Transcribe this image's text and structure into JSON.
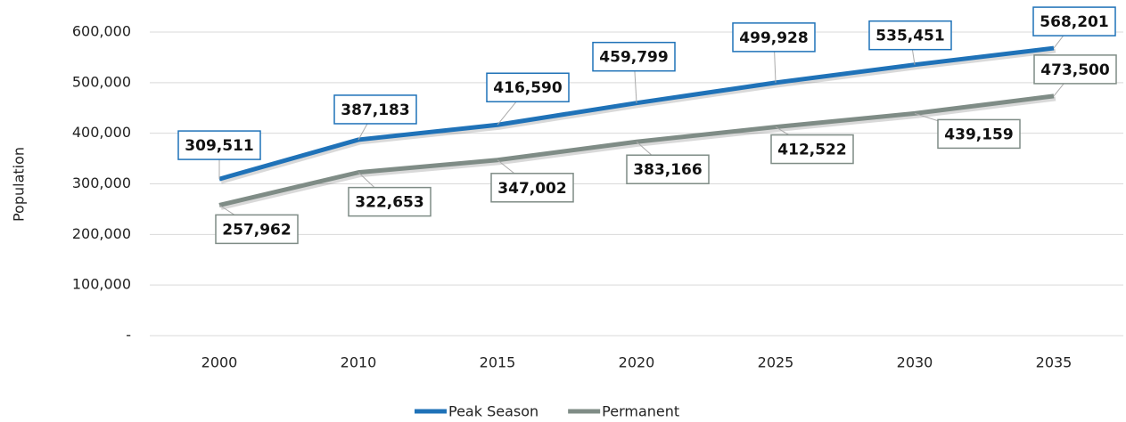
{
  "chart_data": {
    "type": "line",
    "categories": [
      "2000",
      "2010",
      "2015",
      "2020",
      "2025",
      "2030",
      "2035"
    ],
    "series": [
      {
        "name": "Peak Season",
        "color": "#1f72b8",
        "values": [
          309511,
          387183,
          416590,
          459799,
          499928,
          535451,
          568201
        ],
        "value_labels": [
          "309,511",
          "387,183",
          "416,590",
          "459,799",
          "499,928",
          "535,451",
          "568,201"
        ]
      },
      {
        "name": "Permanent",
        "color": "#7f8c86",
        "values": [
          257962,
          322653,
          347002,
          383166,
          412522,
          439159,
          473500
        ],
        "value_labels": [
          "257,962",
          "322,653",
          "347,002",
          "383,166",
          "412,522",
          "439,159",
          "473,500"
        ]
      }
    ],
    "ylabel": "Population",
    "ylim": [
      0,
      600000
    ],
    "yticks": [
      {
        "value": 0,
        "label": "-"
      },
      {
        "value": 100000,
        "label": "100,000"
      },
      {
        "value": 200000,
        "label": "200,000"
      },
      {
        "value": 300000,
        "label": "300,000"
      },
      {
        "value": 400000,
        "label": "400,000"
      },
      {
        "value": 500000,
        "label": "500,000"
      },
      {
        "value": 600000,
        "label": "600,000"
      }
    ],
    "grid": true,
    "legend": "bottom"
  }
}
